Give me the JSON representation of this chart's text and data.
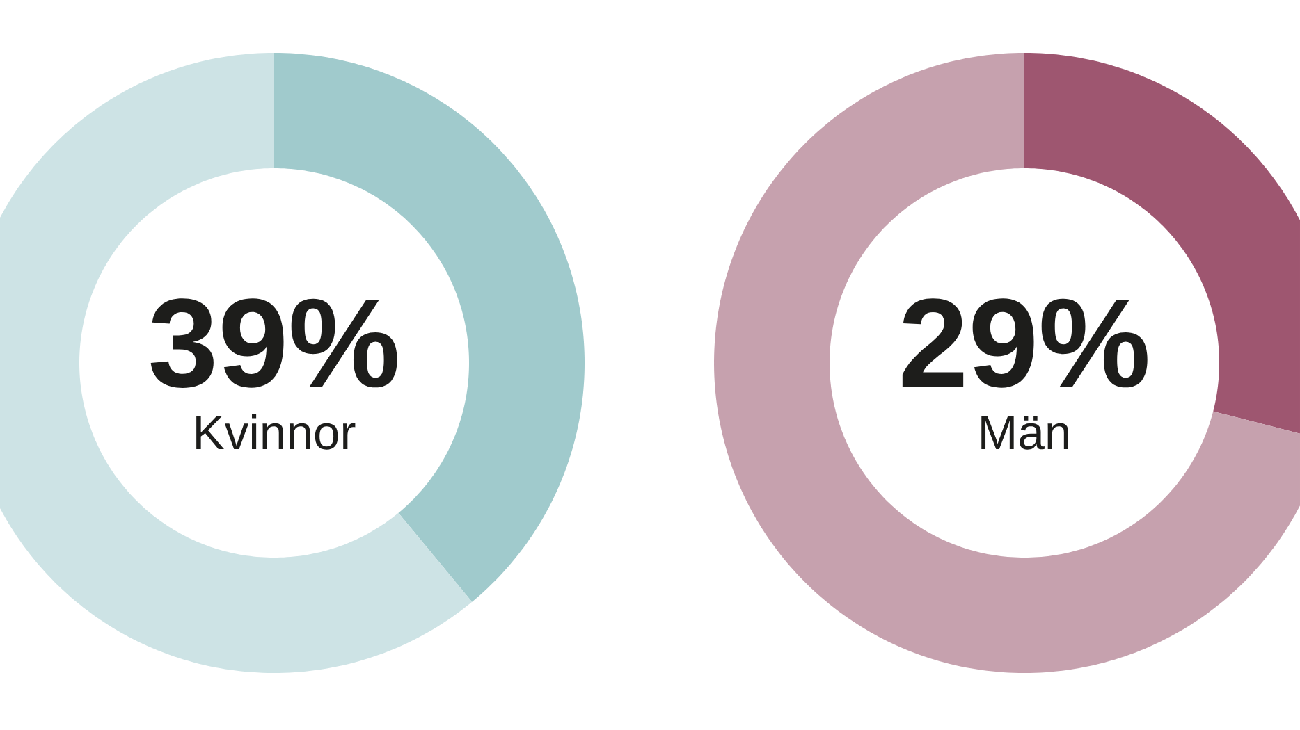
{
  "chart_data": [
    {
      "type": "donut",
      "title": "Kvinnor",
      "categories": [
        null,
        null
      ],
      "values": [
        39,
        61
      ],
      "colors": [
        "#a0cacc",
        "#cde3e5"
      ],
      "value_labels": [
        "39%",
        null
      ]
    },
    {
      "type": "donut",
      "title": "Män",
      "categories": [
        null,
        null
      ],
      "values": [
        29,
        71
      ],
      "colors": [
        "#9e5670",
        "#c6a1ae"
      ],
      "value_labels": [
        "29%",
        null
      ]
    }
  ]
}
